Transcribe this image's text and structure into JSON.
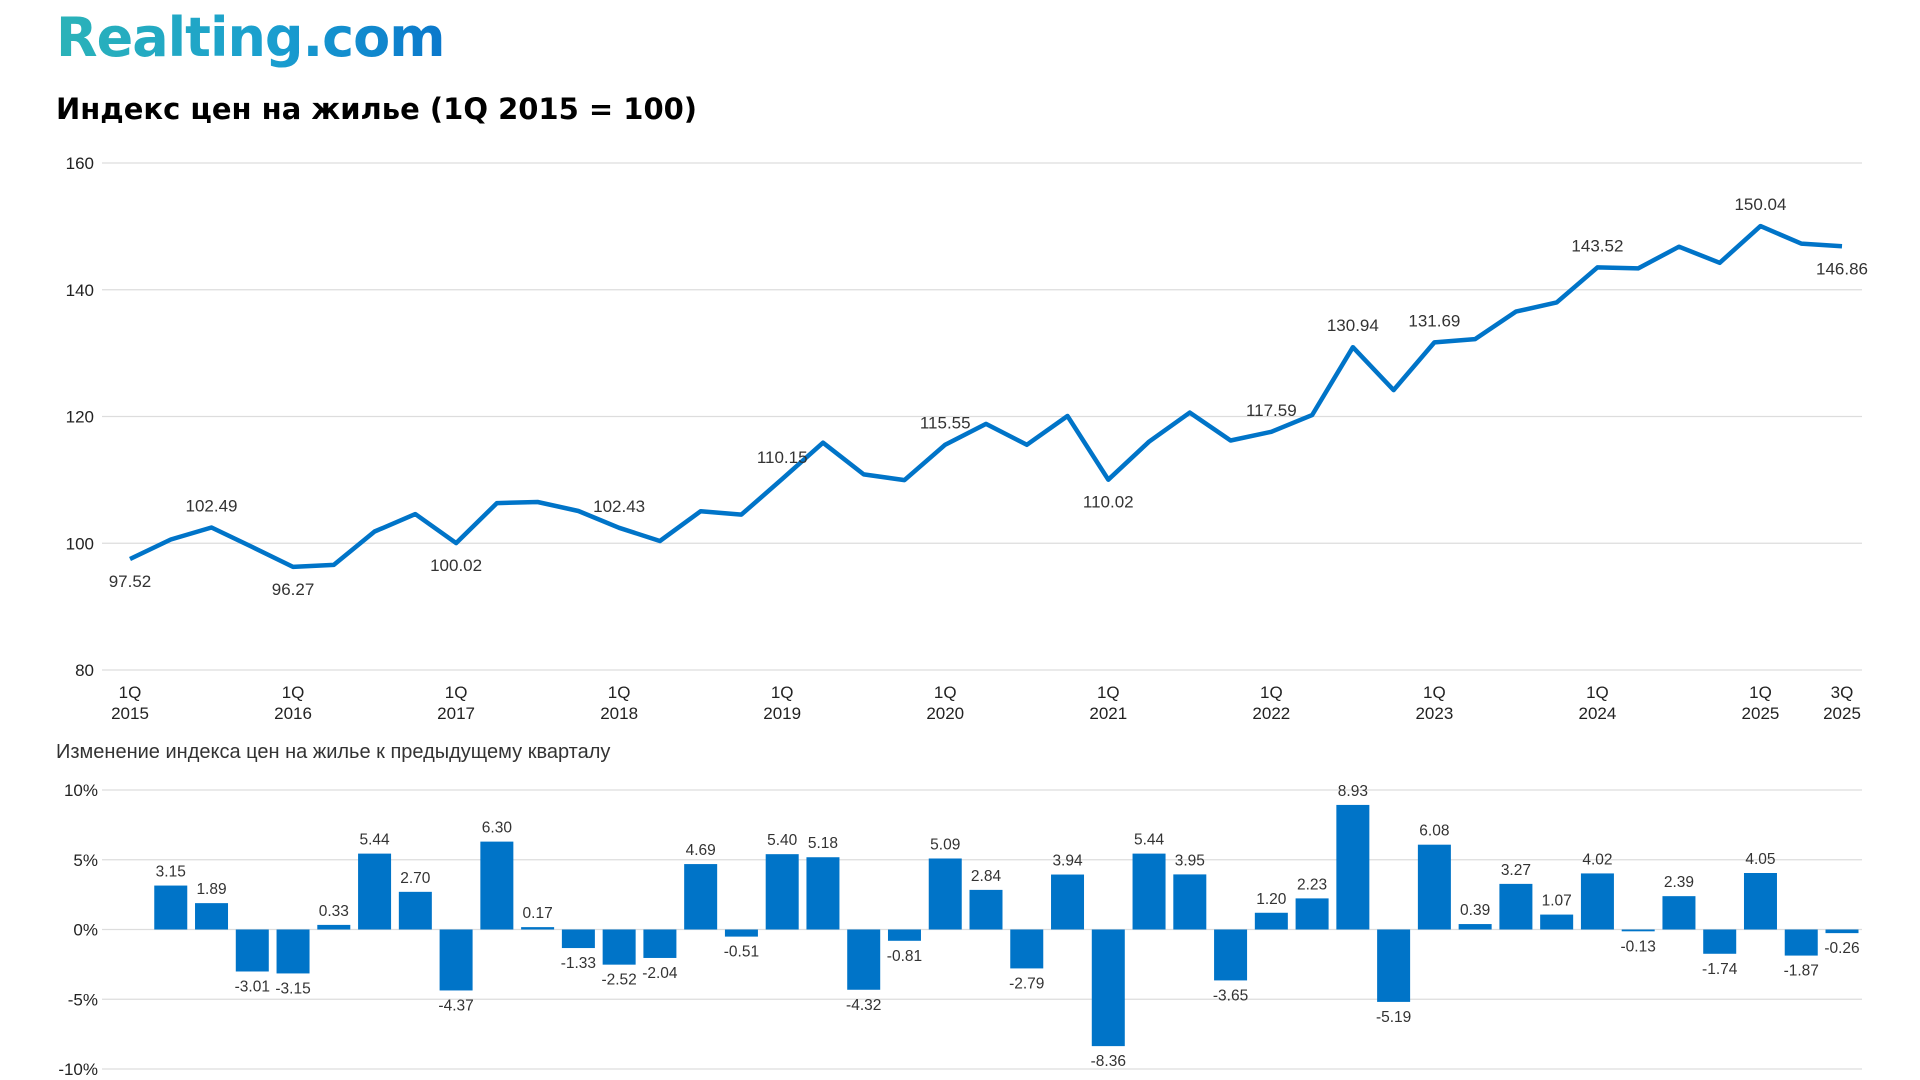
{
  "logo": "Realting.com",
  "colors": {
    "series": "#0074c8",
    "grid": "#dddddd",
    "text": "#222222"
  },
  "chart_data": [
    {
      "type": "line",
      "title": "Индекс цен на жилье (1Q 2015 = 100)",
      "ylim": [
        80,
        160
      ],
      "yticks": [
        80,
        100,
        120,
        140,
        160
      ],
      "grid": true,
      "legend": "none",
      "x": [
        "1Q 2015",
        "2Q 2015",
        "3Q 2015",
        "4Q 2015",
        "1Q 2016",
        "2Q 2016",
        "3Q 2016",
        "4Q 2016",
        "1Q 2017",
        "2Q 2017",
        "3Q 2017",
        "4Q 2017",
        "1Q 2018",
        "2Q 2018",
        "3Q 2018",
        "4Q 2018",
        "1Q 2019",
        "2Q 2019",
        "3Q 2019",
        "4Q 2019",
        "1Q 2020",
        "2Q 2020",
        "3Q 2020",
        "4Q 2020",
        "1Q 2021",
        "2Q 2021",
        "3Q 2021",
        "4Q 2021",
        "1Q 2022",
        "2Q 2022",
        "3Q 2022",
        "4Q 2022",
        "1Q 2023",
        "2Q 2023",
        "3Q 2023",
        "4Q 2023",
        "1Q 2024",
        "2Q 2024",
        "3Q 2024",
        "4Q 2024",
        "1Q 2025",
        "2Q 2025",
        "3Q 2025"
      ],
      "values": [
        97.52,
        100.59,
        102.49,
        99.41,
        96.27,
        96.59,
        101.85,
        104.6,
        100.02,
        106.33,
        106.51,
        105.09,
        102.43,
        100.35,
        105.06,
        104.52,
        110.15,
        115.86,
        110.86,
        109.96,
        115.55,
        118.84,
        115.53,
        120.08,
        110.02,
        116.03,
        120.61,
        116.21,
        117.59,
        120.22,
        130.94,
        124.16,
        131.69,
        132.22,
        136.55,
        138.01,
        143.52,
        143.37,
        146.8,
        144.25,
        150.04,
        147.28,
        146.86
      ],
      "data_labels": [
        {
          "index": 0,
          "text": "97.52",
          "pos": "below"
        },
        {
          "index": 2,
          "text": "102.49",
          "pos": "above"
        },
        {
          "index": 4,
          "text": "96.27",
          "pos": "below"
        },
        {
          "index": 8,
          "text": "100.02",
          "pos": "below"
        },
        {
          "index": 12,
          "text": "102.43",
          "pos": "above"
        },
        {
          "index": 16,
          "text": "110.15",
          "pos": "above"
        },
        {
          "index": 20,
          "text": "115.55",
          "pos": "above"
        },
        {
          "index": 24,
          "text": "110.02",
          "pos": "below"
        },
        {
          "index": 28,
          "text": "117.59",
          "pos": "above"
        },
        {
          "index": 30,
          "text": "130.94",
          "pos": "above"
        },
        {
          "index": 32,
          "text": "131.69",
          "pos": "above"
        },
        {
          "index": 36,
          "text": "143.52",
          "pos": "above"
        },
        {
          "index": 40,
          "text": "150.04",
          "pos": "above"
        },
        {
          "index": 42,
          "text": "146.86",
          "pos": "below"
        }
      ],
      "xtick_labels": [
        {
          "index": 0,
          "q": "1Q",
          "y": "2015"
        },
        {
          "index": 4,
          "q": "1Q",
          "y": "2016"
        },
        {
          "index": 8,
          "q": "1Q",
          "y": "2017"
        },
        {
          "index": 12,
          "q": "1Q",
          "y": "2018"
        },
        {
          "index": 16,
          "q": "1Q",
          "y": "2019"
        },
        {
          "index": 20,
          "q": "1Q",
          "y": "2020"
        },
        {
          "index": 24,
          "q": "1Q",
          "y": "2021"
        },
        {
          "index": 28,
          "q": "1Q",
          "y": "2022"
        },
        {
          "index": 32,
          "q": "1Q",
          "y": "2023"
        },
        {
          "index": 36,
          "q": "1Q",
          "y": "2024"
        },
        {
          "index": 40,
          "q": "1Q",
          "y": "2025"
        },
        {
          "index": 42,
          "q": "3Q",
          "y": "2025"
        }
      ]
    },
    {
      "type": "bar",
      "title": "Изменение индекса цен на жилье к предыдущему кварталу",
      "ylim": [
        -10,
        10
      ],
      "yticks": [
        "-10%",
        "-5%",
        "0%",
        "5%",
        "10%"
      ],
      "grid": true,
      "values": [
        3.15,
        1.89,
        -3.01,
        -3.15,
        0.33,
        5.44,
        2.7,
        -4.37,
        6.3,
        0.17,
        -1.33,
        -2.52,
        -2.04,
        4.69,
        -0.51,
        5.4,
        5.18,
        -4.32,
        -0.81,
        5.09,
        2.84,
        -2.79,
        3.94,
        -8.36,
        5.44,
        3.95,
        -3.65,
        1.2,
        2.23,
        8.93,
        -5.19,
        6.08,
        0.39,
        3.27,
        1.07,
        4.02,
        -0.13,
        2.39,
        -1.74,
        4.05,
        -1.87,
        -0.26
      ]
    }
  ]
}
